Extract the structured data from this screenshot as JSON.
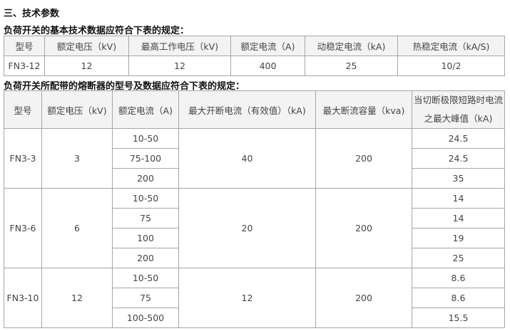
{
  "section_title": "三、技术参数",
  "table1": {
    "caption": "负荷开关的基本技术数据应符合下表的规定：",
    "headers": [
      "型号",
      "额定电压（kV)",
      "最高工作电压（kV)",
      "额定电流（A)",
      "动稳定电流（kA)",
      "热稳定电流（kA/S)"
    ],
    "row": [
      "FN3-12",
      "12",
      "12",
      "400",
      "25",
      "10/2"
    ]
  },
  "table2": {
    "caption": "负荷开关所配带的熔断器的型号及数据应符合下表的规定：",
    "headers": [
      "型号",
      "额定电压（kV)",
      "额定电流（A)",
      "最大开断电流（有效值）（kA)",
      "最大断流容量（kva)",
      "当切断极限短路时电流之最大峰值（kA)"
    ],
    "groups": [
      {
        "model": "FN3-3",
        "voltage": "3",
        "breaking": "40",
        "capacity": "200",
        "rows": [
          [
            "10-50",
            "24.5"
          ],
          [
            "75-100",
            "24.5"
          ],
          [
            "200",
            "35"
          ]
        ]
      },
      {
        "model": "FN3-6",
        "voltage": "6",
        "breaking": "20",
        "capacity": "200",
        "rows": [
          [
            "10-50",
            "14"
          ],
          [
            "75",
            "14"
          ],
          [
            "100",
            "19"
          ],
          [
            "200",
            "25"
          ]
        ]
      },
      {
        "model": "FN3-10",
        "voltage": "12",
        "breaking": "12",
        "capacity": "200",
        "rows": [
          [
            "10-50",
            "8.6"
          ],
          [
            "75",
            "8.6"
          ],
          [
            "100-500",
            "15.5"
          ]
        ]
      }
    ]
  }
}
